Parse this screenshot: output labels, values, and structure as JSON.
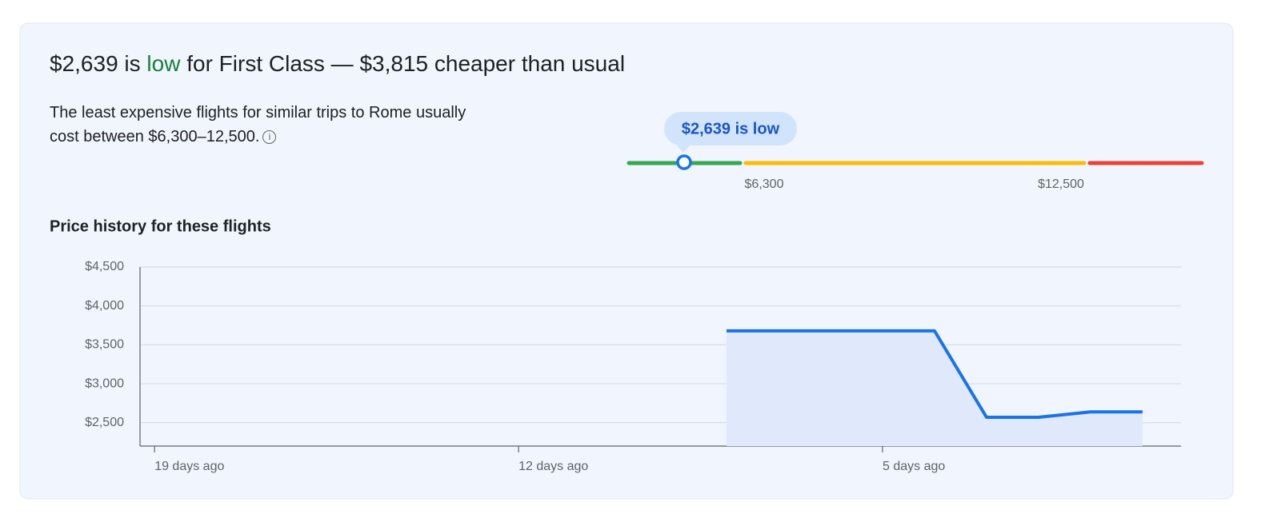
{
  "header": {
    "title_price": "$2,639 is",
    "title_level": "low",
    "title_rest": "for First Class — $3,815 cheaper than usual",
    "summary": "The least expensive flights for similar trips to Rome usually cost between $6,300–12,500."
  },
  "gauge": {
    "bubble": "$2,639 is low",
    "low_label": "$6,300",
    "high_label": "$12,500"
  },
  "chart_data": {
    "type": "line",
    "title": "Price history for these flights",
    "x": [
      -8,
      -7,
      -6,
      -5,
      -4,
      -3,
      -2,
      -1,
      0
    ],
    "series": [
      {
        "name": "Price",
        "color": "#1a73e8",
        "values": [
          3680,
          3680,
          3680,
          3680,
          3680,
          2570,
          2570,
          2639,
          2639
        ]
      }
    ],
    "xlim": [
      -19.28,
      0.74
    ],
    "xticks": [
      {
        "value": -19,
        "label": "19 days ago"
      },
      {
        "value": -12,
        "label": "12 days ago"
      },
      {
        "value": -5,
        "label": "5 days ago"
      }
    ],
    "ylim": [
      2200,
      4500
    ],
    "yticks": [
      {
        "value": 2500,
        "label": "$2,500"
      },
      {
        "value": 3000,
        "label": "$3,000"
      },
      {
        "value": 3500,
        "label": "$3,500"
      },
      {
        "value": 4000,
        "label": "$4,000"
      },
      {
        "value": 4500,
        "label": "$4,500"
      }
    ],
    "grid": true,
    "area_color": "#e0e9fb"
  }
}
